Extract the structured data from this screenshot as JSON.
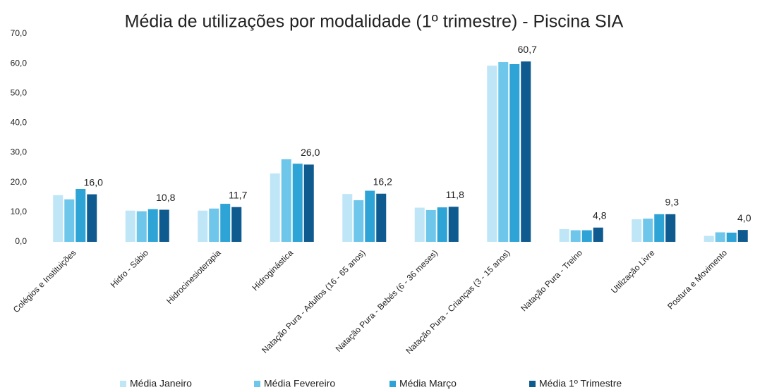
{
  "chart_data": {
    "type": "bar",
    "title": "Média de utilizações por modalidade (1º trimestre) - Piscina SIA",
    "categories": [
      "Colégios e Instituições",
      "Hidro - Sábio",
      "Hidrocinesioterapia",
      "Hidroginástica",
      "Natação Pura - Adultos (16 - 65 anos)",
      "Natação Pura - Bebés (6 - 36 meses)",
      "Natação Pura - Crianças (3 - 15 anos)",
      "Natação Pura - Treino",
      "Utilização Livre",
      "Postura e Movimento"
    ],
    "series": [
      {
        "name": "Média Janeiro",
        "color": "#bfe6f7",
        "values": [
          15.7,
          10.5,
          10.5,
          23.0,
          16.1,
          11.5,
          59.3,
          4.3,
          7.6,
          2.0
        ]
      },
      {
        "name": "Média Fevereiro",
        "color": "#6ec6ea",
        "values": [
          14.3,
          10.3,
          11.2,
          27.8,
          14.0,
          10.7,
          60.5,
          3.9,
          7.8,
          3.2
        ]
      },
      {
        "name": "Média Março",
        "color": "#2ea3d6",
        "values": [
          17.8,
          11.0,
          12.8,
          26.3,
          17.2,
          11.6,
          59.8,
          3.9,
          9.3,
          3.1
        ]
      },
      {
        "name": "Média 1º Trimestre",
        "color": "#0f5a8e",
        "values": [
          16.0,
          10.8,
          11.7,
          26.0,
          16.2,
          11.8,
          60.7,
          4.8,
          9.3,
          4.0
        ],
        "value_labels": [
          "16,0",
          "10,8",
          "11,7",
          "26,0",
          "16,2",
          "11,8",
          "60,7",
          "4,8",
          "9,3",
          "4,0"
        ]
      }
    ],
    "ylim": [
      0,
      70
    ],
    "yticks": [
      {
        "value": 0,
        "label": "0,0"
      },
      {
        "value": 10,
        "label": "10,0"
      },
      {
        "value": 20,
        "label": "20,0"
      },
      {
        "value": 30,
        "label": "30,0"
      },
      {
        "value": 40,
        "label": "40,0"
      },
      {
        "value": 50,
        "label": "50,0"
      },
      {
        "value": 60,
        "label": "60,0"
      },
      {
        "value": 70,
        "label": "70,0"
      }
    ],
    "grid": false
  }
}
